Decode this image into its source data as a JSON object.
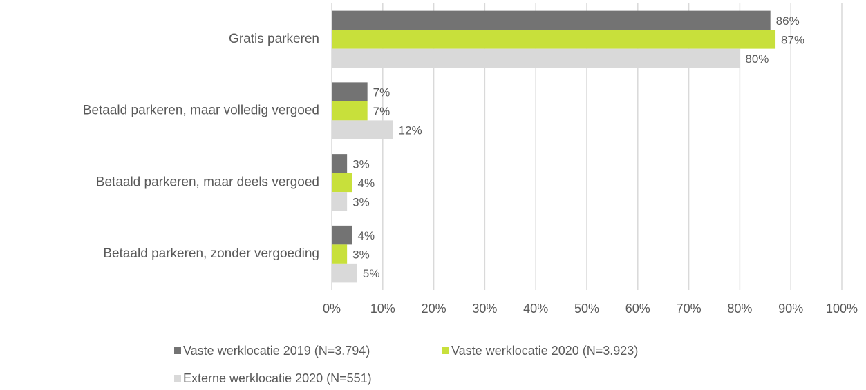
{
  "chart_data": {
    "type": "bar",
    "orientation": "horizontal",
    "categories": [
      "Gratis parkeren",
      "Betaald parkeren, maar volledig vergoed",
      "Betaald parkeren, maar deels vergoed",
      "Betaald parkeren, zonder vergoeding"
    ],
    "series": [
      {
        "name": "Vaste werklocatie 2019 (N=3.794)",
        "color": "#737373",
        "values": [
          86,
          7,
          3,
          4
        ],
        "value_labels": [
          "86%",
          "7%",
          "3%",
          "4%"
        ]
      },
      {
        "name": "Vaste werklocatie 2020 (N=3.923)",
        "color": "#c8e03b",
        "values": [
          87,
          7,
          4,
          3
        ],
        "value_labels": [
          "87%",
          "7%",
          "4%",
          "3%"
        ]
      },
      {
        "name": "Externe werklocatie 2020 (N=551)",
        "color": "#d9d9d9",
        "values": [
          80,
          12,
          3,
          5
        ],
        "value_labels": [
          "80%",
          "12%",
          "3%",
          "5%"
        ]
      }
    ],
    "xlim": [
      0,
      100
    ],
    "xticks": [
      {
        "value": 0,
        "label": "0%"
      },
      {
        "value": 10,
        "label": "10%"
      },
      {
        "value": 20,
        "label": "20%"
      },
      {
        "value": 30,
        "label": "30%"
      },
      {
        "value": 40,
        "label": "40%"
      },
      {
        "value": 50,
        "label": "50%"
      },
      {
        "value": 60,
        "label": "60%"
      },
      {
        "value": 70,
        "label": "70%"
      },
      {
        "value": 80,
        "label": "80%"
      },
      {
        "value": 90,
        "label": "90%"
      },
      {
        "value": 100,
        "label": "100%"
      }
    ],
    "grid": true,
    "legend": "bottom"
  }
}
